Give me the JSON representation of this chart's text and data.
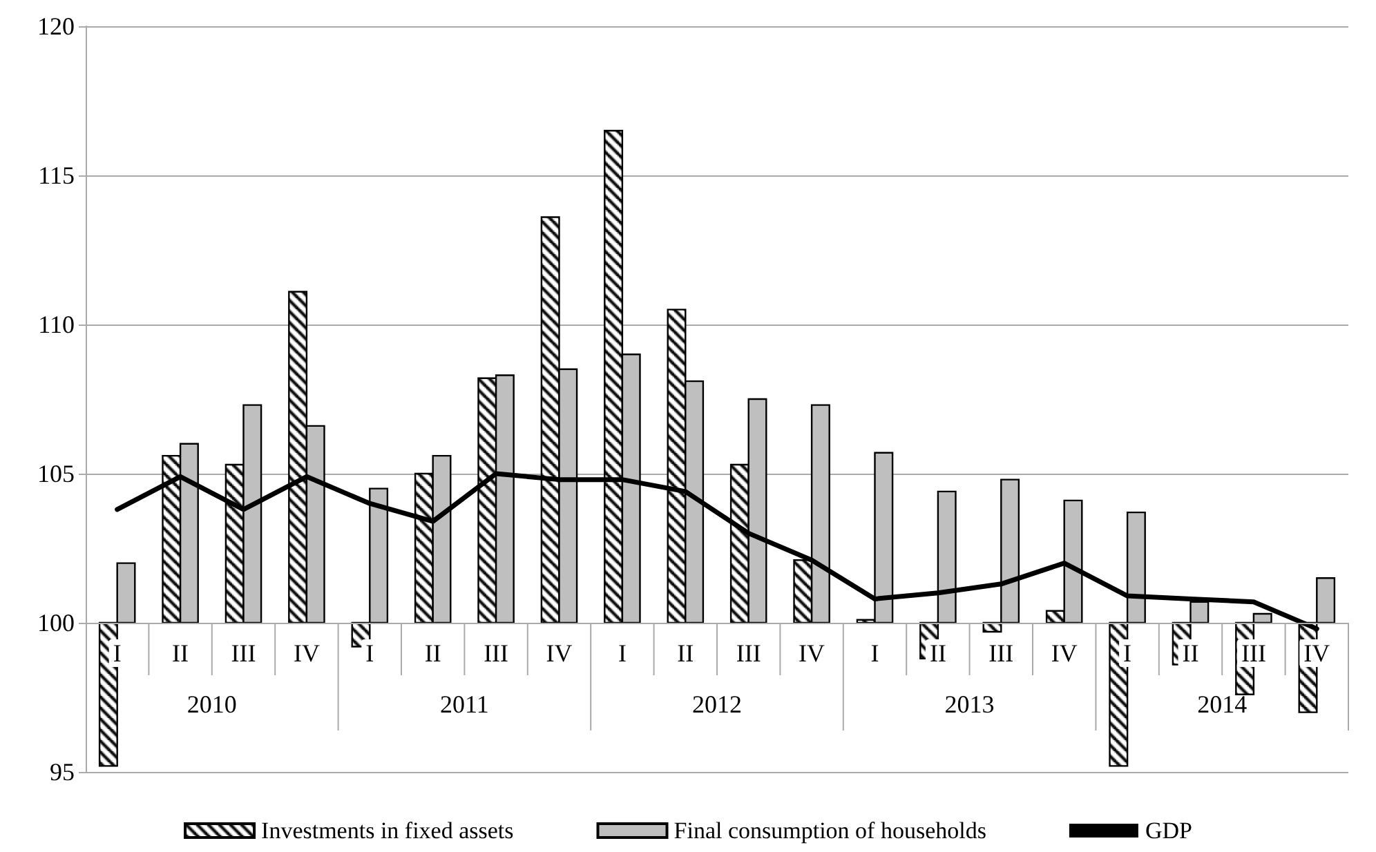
{
  "chart_data": {
    "type": "bar",
    "categories": [
      "I",
      "II",
      "III",
      "IV",
      "I",
      "II",
      "III",
      "IV",
      "I",
      "II",
      "III",
      "IV",
      "I",
      "II",
      "III",
      "IV",
      "I",
      "II",
      "III",
      "IV"
    ],
    "annotations": [
      "2010",
      "2011",
      "2012",
      "2013",
      "2014"
    ],
    "series": [
      {
        "name": "Investments in fixed assets",
        "color": "#000000",
        "base": [
          100,
          100,
          100,
          100,
          100,
          100,
          100,
          100,
          100,
          100,
          100,
          100,
          100,
          100,
          100,
          100,
          100,
          100,
          100,
          100
        ],
        "values": [
          -4.8,
          5.6,
          5.3,
          11.1,
          -0.8,
          5.0,
          8.2,
          13.6,
          16.5,
          10.5,
          5.3,
          2.1,
          0.1,
          -1.2,
          -0.3,
          0.4,
          -4.8,
          -1.4,
          -2.4,
          -3.0
        ]
      },
      {
        "name": "Final consumption of households",
        "color": "#bfbfbf",
        "base": [
          100,
          100,
          100,
          100,
          100,
          100,
          100,
          100,
          100,
          100,
          100,
          100,
          100,
          100,
          100,
          100,
          100,
          100,
          100,
          100
        ],
        "values": [
          2.0,
          6.0,
          7.3,
          6.6,
          4.5,
          5.6,
          8.3,
          8.5,
          9.0,
          8.1,
          7.5,
          7.3,
          5.7,
          4.4,
          4.8,
          4.1,
          3.7,
          0.7,
          0.3,
          1.5
        ]
      },
      {
        "name": "GDP",
        "type": "line",
        "color": "#000000",
        "values": [
          103.8,
          104.9,
          103.8,
          104.9,
          104.0,
          103.4,
          105.0,
          104.8,
          104.8,
          104.4,
          103.0,
          102.1,
          100.8,
          101.0,
          101.3,
          102.0,
          100.9,
          100.8,
          100.7,
          99.8
        ]
      }
    ],
    "ylim": [
      95,
      120
    ],
    "yticks": [
      95,
      100,
      105,
      110,
      115,
      120
    ],
    "grid": "y",
    "legend": "bottom",
    "marker": "none",
    "line_style": "solid"
  }
}
